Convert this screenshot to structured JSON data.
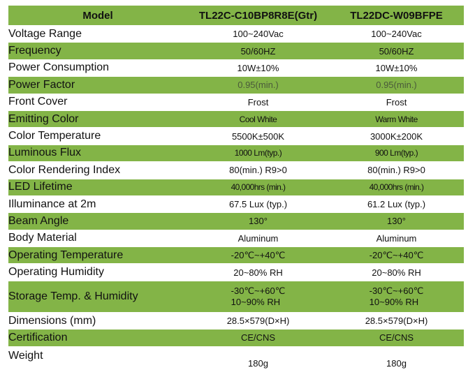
{
  "table": {
    "headers": [
      "Model",
      "TL22C-C10BP8R8E(Gtr)",
      "TL22DC-W09BFPE"
    ],
    "rows": [
      {
        "label": "Voltage Range",
        "v1": "100~240Vac",
        "v2": "100~240Vac"
      },
      {
        "label": "Frequency",
        "v1": "50/60HZ",
        "v2": "50/60HZ"
      },
      {
        "label": "Power Consumption",
        "v1": "10W±10%",
        "v2": "10W±10%"
      },
      {
        "label": "Power Factor",
        "v1": "0.95(min.)",
        "v2": "0.95(min.)"
      },
      {
        "label": "Front Cover",
        "v1": "Frost",
        "v2": "Frost"
      },
      {
        "label": "Emitting Color",
        "v1": "Cool White",
        "v2": "Warm White"
      },
      {
        "label": "Color Temperature",
        "v1": "5500K±500K",
        "v2": "3000K±200K"
      },
      {
        "label": "Luminous Flux",
        "v1": "1000 Lm(typ.)",
        "v2": "900 Lm(typ.)"
      },
      {
        "label": "Color Rendering Index",
        "v1": "80(min.) R9>0",
        "v2": "80(min.) R9>0"
      },
      {
        "label": "LED Lifetime",
        "v1": "40,000hrs (min.)",
        "v2": "40,000hrs (min.)"
      },
      {
        "label": "Illuminance at 2m",
        "v1": "67.5 Lux (typ.)",
        "v2": "61.2 Lux (typ.)"
      },
      {
        "label": "Beam Angle",
        "v1": "130°",
        "v2": "130°"
      },
      {
        "label": "Body Material",
        "v1": "Aluminum",
        "v2": "Aluminum"
      },
      {
        "label": "Operating Temperature",
        "v1": "-20℃~+40℃",
        "v2": "-20℃~+40℃"
      },
      {
        "label": "Operating Humidity",
        "v1": "20~80% RH",
        "v2": "20~80% RH"
      },
      {
        "label": "Storage Temp. & Humidity",
        "v1": "-30℃~+60℃",
        "v1b": "10~90% RH",
        "v2": "-30℃~+60℃",
        "v2b": "10~90% RH"
      },
      {
        "label": "Dimensions (mm)",
        "v1": "28.5×579(D×H)",
        "v2": "28.5×579(D×H)"
      },
      {
        "label": "Certification",
        "v1": "CE/CNS",
        "v2": "CE/CNS"
      },
      {
        "label": "Weight",
        "v1": "180g",
        "v2": "180g"
      }
    ]
  },
  "colors": {
    "green_row": "#83b447",
    "white_row": "#ffffff",
    "text": "#111111"
  }
}
